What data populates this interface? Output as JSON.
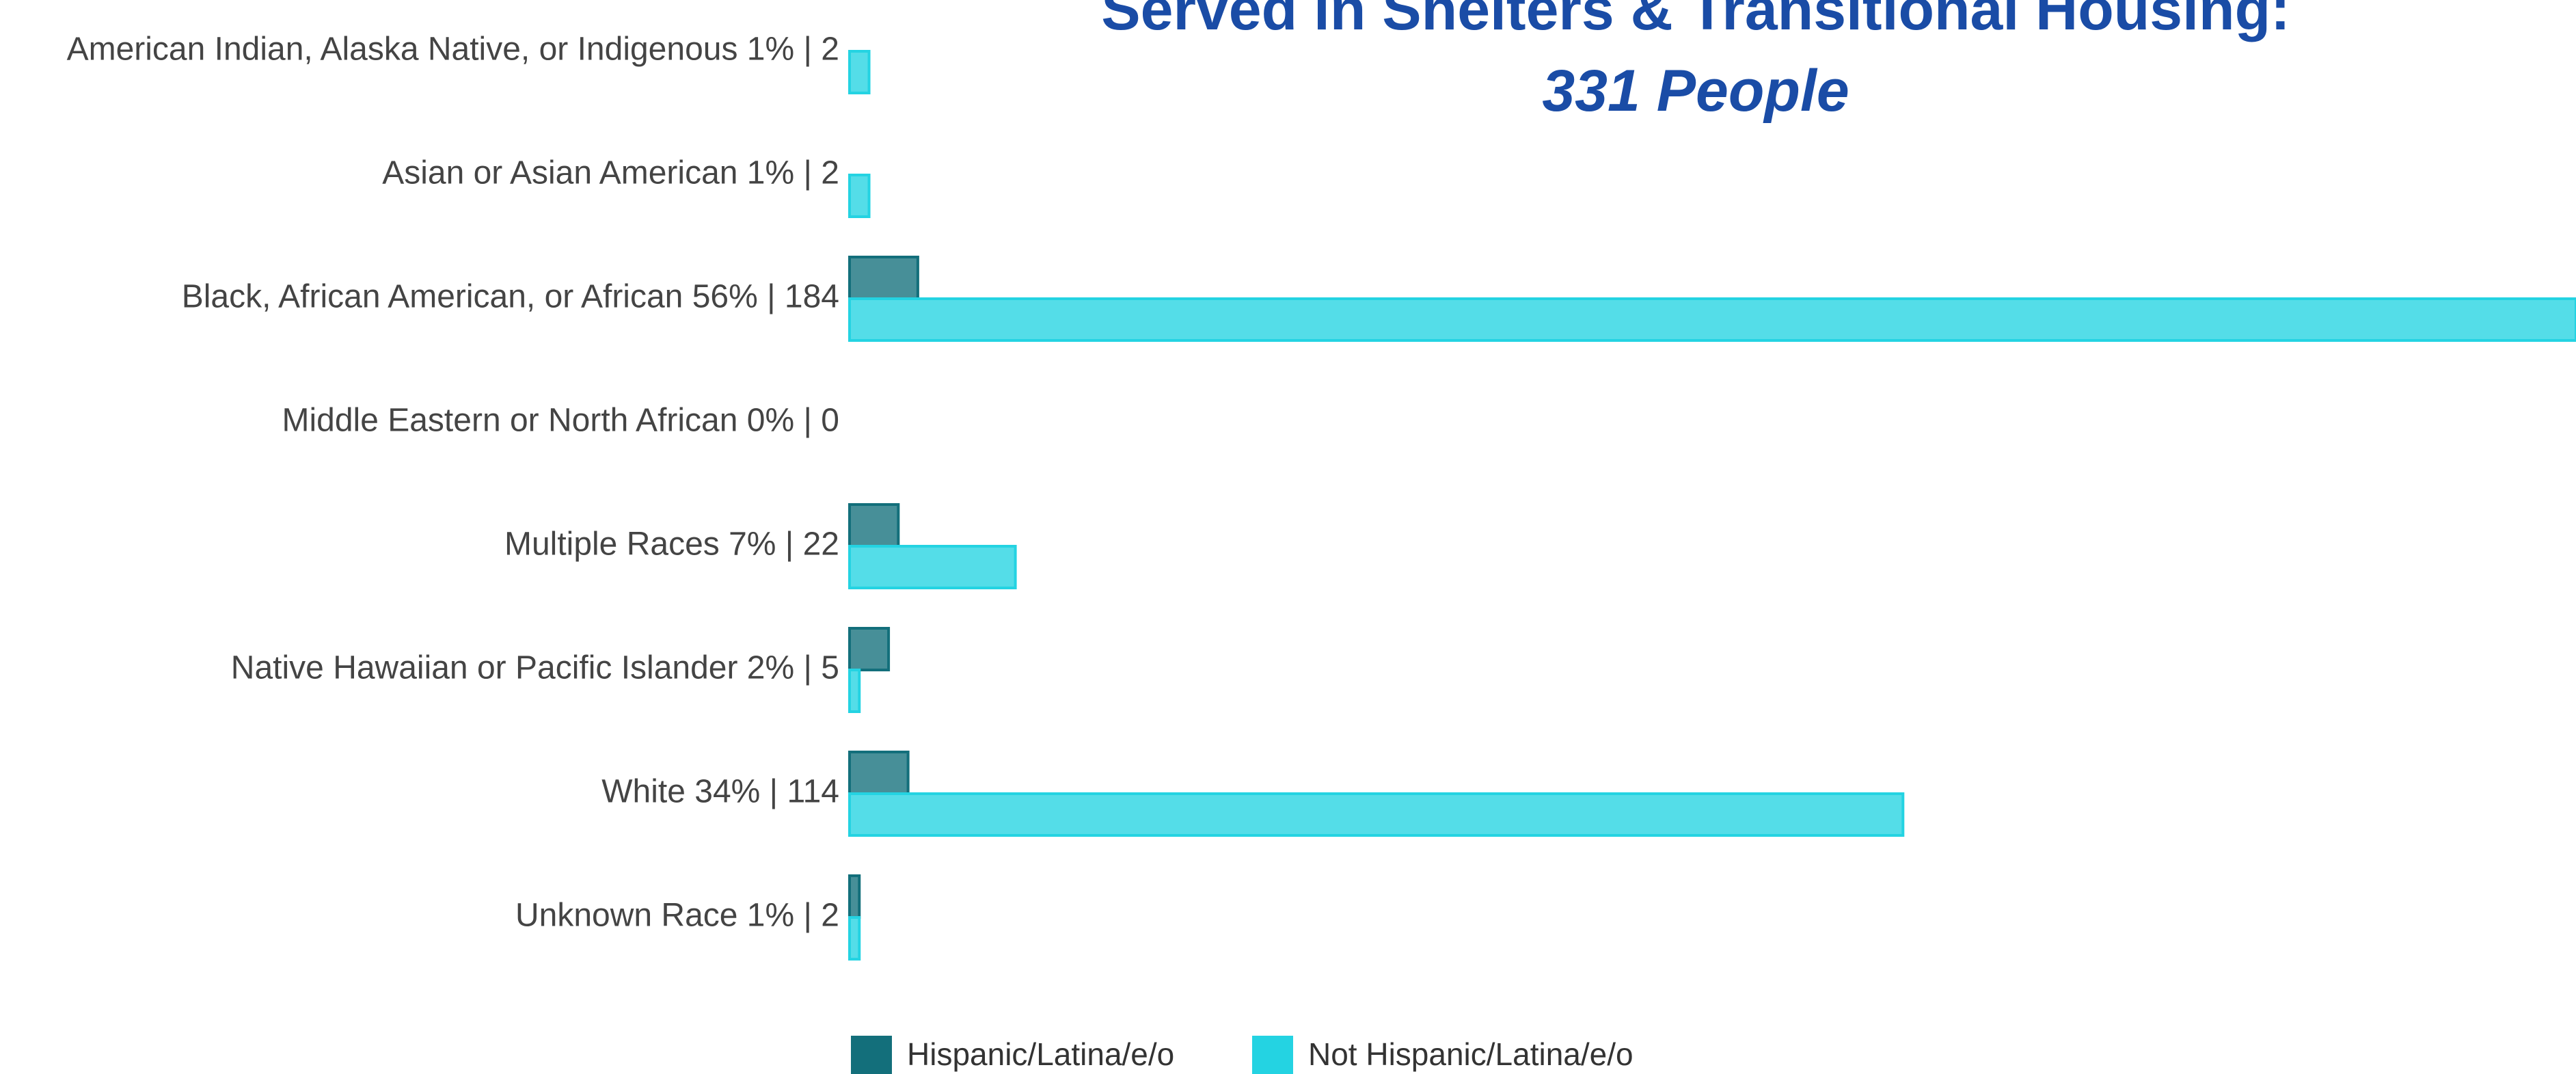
{
  "chart_data": {
    "type": "hbar",
    "title": "Served in Shelters & Transitional Housing:",
    "subtitle": "331 People",
    "categories": [
      "American Indian, Alaska Native, or Indigenous 1% | 2",
      "Asian or Asian American 1% | 2",
      "Black, African American, or African 56% | 184",
      "Middle Eastern or North African 0% | 0",
      "Multiple Races 7% | 22",
      "Native Hawaiian or Pacific Islander 2% | 5",
      "White 34% | 114",
      "Unknown Race 1% | 2"
    ],
    "series": [
      {
        "name": "Hispanic/Latina/e/o",
        "color": "#136f7b",
        "values": [
          0,
          0,
          7,
          0,
          5,
          4,
          6,
          1
        ]
      },
      {
        "name": "Not Hispanic/Latina/e/o",
        "color": "#24d3e2",
        "values": [
          2,
          2,
          177,
          0,
          17,
          1,
          108,
          1
        ]
      }
    ],
    "xlim": [
      0,
      177
    ],
    "legend": "bottom"
  }
}
